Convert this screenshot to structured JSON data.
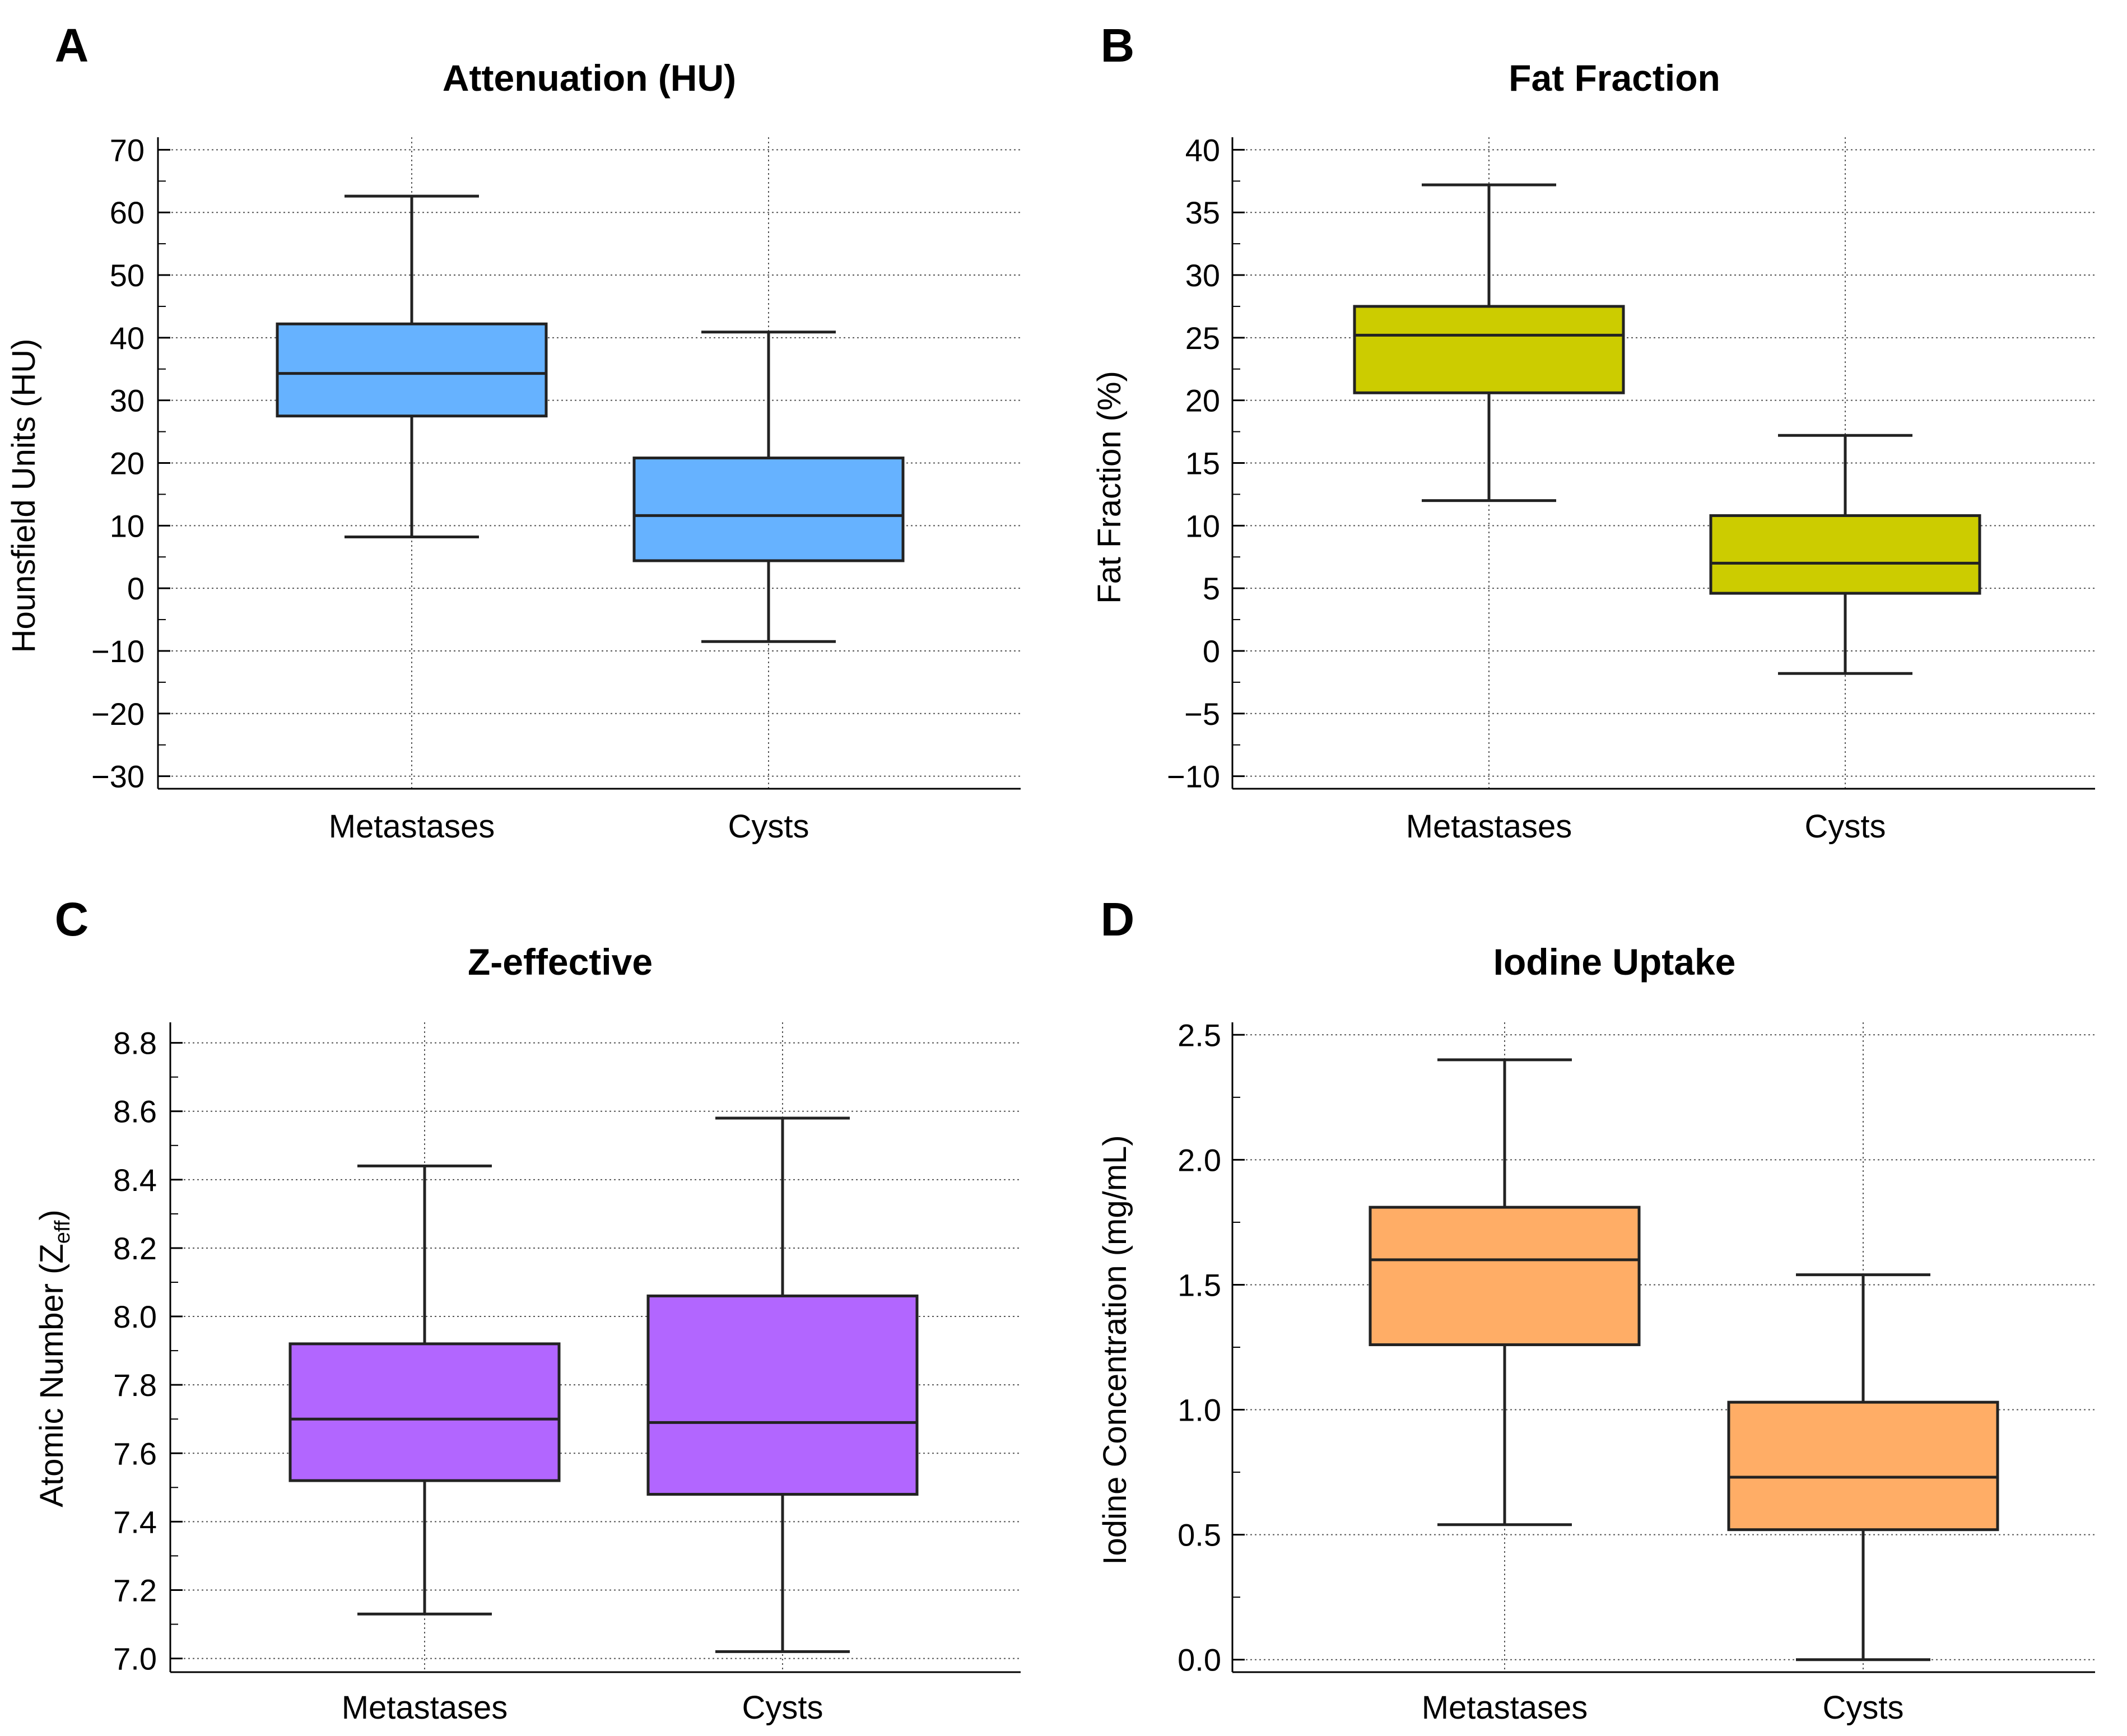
{
  "chart_data": [
    {
      "type": "box",
      "letter": "A",
      "title": "Attenuation (HU)",
      "ylabel": "Hounsfield Units (HU)",
      "ylabel_sub": "",
      "ylabel_tail": "",
      "xlabel": "",
      "ylim": [
        -32,
        72
      ],
      "yticks": [
        70,
        60,
        50,
        40,
        30,
        20,
        10,
        0,
        -10,
        -20,
        -30
      ],
      "ytick_labels": [
        "70",
        "60",
        "50",
        "40",
        "30",
        "20",
        "10",
        "0",
        "−10",
        "−20",
        "−30"
      ],
      "minor_step": 5,
      "grid": true,
      "color": "#66b2ff",
      "categories": [
        "Metastases",
        "Cysts"
      ],
      "boxes": [
        {
          "min": 8.2,
          "q1": 27.5,
          "median": 34.3,
          "q3": 42.2,
          "max": 62.6
        },
        {
          "min": -8.5,
          "q1": 4.4,
          "median": 11.6,
          "q3": 20.8,
          "max": 40.9
        }
      ]
    },
    {
      "type": "box",
      "letter": "B",
      "title": "Fat Fraction",
      "ylabel": "Fat Fraction (%)",
      "ylabel_sub": "",
      "ylabel_tail": "",
      "xlabel": "",
      "ylim": [
        -11,
        41
      ],
      "yticks": [
        40,
        35,
        30,
        25,
        20,
        15,
        10,
        5,
        0,
        -5,
        -10
      ],
      "ytick_labels": [
        "40",
        "35",
        "30",
        "25",
        "20",
        "15",
        "10",
        "5",
        "0",
        "−5",
        "−10"
      ],
      "minor_step": 2.5,
      "grid": true,
      "color": "#cccc00",
      "categories": [
        "Metastases",
        "Cysts"
      ],
      "boxes": [
        {
          "min": 12.0,
          "q1": 20.6,
          "median": 25.2,
          "q3": 27.5,
          "max": 37.2
        },
        {
          "min": -1.8,
          "q1": 4.6,
          "median": 7.0,
          "q3": 10.8,
          "max": 17.2
        }
      ]
    },
    {
      "type": "box",
      "letter": "C",
      "title": "Z-effective",
      "ylabel": "Atomic Number (Z",
      "ylabel_sub": "eff",
      "ylabel_tail": ")",
      "xlabel": "",
      "ylim": [
        6.96,
        8.86
      ],
      "yticks": [
        8.8,
        8.6,
        8.4,
        8.2,
        8.0,
        7.8,
        7.6,
        7.4,
        7.2,
        7.0
      ],
      "ytick_labels": [
        "8.8",
        "8.6",
        "8.4",
        "8.2",
        "8.0",
        "7.8",
        "7.6",
        "7.4",
        "7.2",
        "7.0"
      ],
      "minor_step": 0.1,
      "grid": true,
      "color": "#b266ff",
      "categories": [
        "Metastases",
        "Cysts"
      ],
      "boxes": [
        {
          "min": 7.13,
          "q1": 7.52,
          "median": 7.7,
          "q3": 7.92,
          "max": 8.44
        },
        {
          "min": 7.02,
          "q1": 7.48,
          "median": 7.69,
          "q3": 8.06,
          "max": 8.58
        }
      ]
    },
    {
      "type": "box",
      "letter": "D",
      "title": "Iodine Uptake",
      "ylabel": "Iodine Concentration (mg/mL)",
      "ylabel_sub": "",
      "ylabel_tail": "",
      "xlabel": "",
      "ylim": [
        -0.05,
        2.55
      ],
      "yticks": [
        2.5,
        2.0,
        1.5,
        1.0,
        0.5,
        0.0
      ],
      "ytick_labels": [
        "2.5",
        "2.0",
        "1.5",
        "1.0",
        "0.5",
        "0.0"
      ],
      "minor_step": 0.25,
      "grid": true,
      "color": "#ffad66",
      "categories": [
        "Metastases",
        "Cysts"
      ],
      "boxes": [
        {
          "min": 0.54,
          "q1": 1.26,
          "median": 1.6,
          "q3": 1.81,
          "max": 2.4
        },
        {
          "min": 0.0,
          "q1": 0.52,
          "median": 0.73,
          "q3": 1.03,
          "max": 1.54
        }
      ]
    }
  ]
}
